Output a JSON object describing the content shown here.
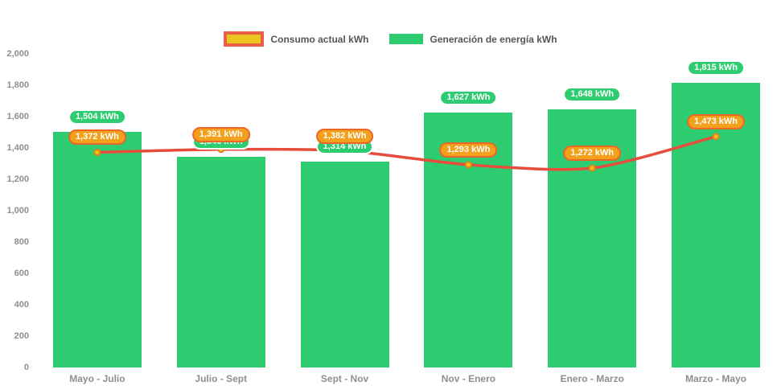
{
  "legend": {
    "items": [
      {
        "label": "Consumo actual kWh"
      },
      {
        "label": "Generación de energía kWh"
      }
    ]
  },
  "colors": {
    "background": "#ffffff",
    "bar": "#2ecc71",
    "line": "#e74c3c",
    "dot_fill": "#f1c40f",
    "dot_stroke": "#e67e22",
    "bar_badge_fill": "#2ecc71",
    "bar_badge_border": "#ffffff",
    "line_badge_fill": "#f3a11c",
    "line_badge_border": "#ec6726",
    "legend_consumo_fill": "#e9c71f",
    "legend_consumo_border": "#ea5f47",
    "legend_generacion_fill": "#2ecc71",
    "axis_text": "#8f8f8f",
    "legend_text": "#565656"
  },
  "chart_data": {
    "type": "bar+line",
    "title": "",
    "categories": [
      "Mayo - Julio",
      "Julio - Sept",
      "Sept - Nov",
      "Nov - Enero",
      "Enero - Marzo",
      "Marzo - Mayo"
    ],
    "series": [
      {
        "name": "Generación de energía kWh",
        "type": "bar",
        "color": "#2ecc71",
        "values": [
          1504,
          1346,
          1314,
          1627,
          1648,
          1815
        ],
        "labels": [
          "1,504 kWh",
          "1,346 kWh",
          "1,314 kWh",
          "1,627 kWh",
          "1,648 kWh",
          "1,815 kWh"
        ]
      },
      {
        "name": "Consumo actual kWh",
        "type": "line",
        "color": "#e74c3c",
        "values": [
          1372,
          1391,
          1382,
          1293,
          1272,
          1473
        ],
        "labels": [
          "1,372 kWh",
          "1,391 kWh",
          "1,382 kWh",
          "1,293 kWh",
          "1,272 kWh",
          "1,473 kWh"
        ]
      }
    ],
    "ylim": [
      0,
      2000
    ],
    "ytick_step": 200,
    "yticks": [
      "0",
      "200",
      "400",
      "600",
      "800",
      "1,000",
      "1,200",
      "1,400",
      "1,600",
      "1,800",
      "2,000"
    ],
    "grid": false,
    "legend_position": "top-center"
  }
}
